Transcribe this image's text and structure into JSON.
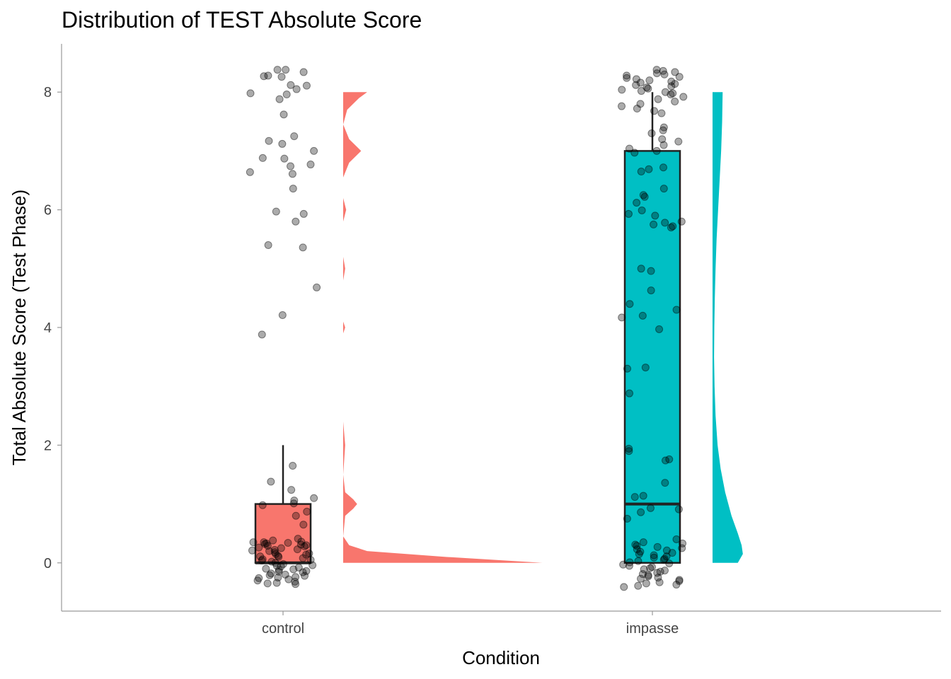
{
  "chart_data": {
    "type": "raincloud",
    "title": "Distribution of TEST Absolute Score",
    "xlabel": "Condition",
    "ylabel": "Total Absolute Score (Test Phase)",
    "categories": [
      "control",
      "impasse"
    ],
    "ylim": [
      -0.82,
      8.82
    ],
    "yticks": [
      0,
      2,
      4,
      6,
      8
    ],
    "grid": false,
    "legend": "none",
    "colors": {
      "control": "#F8766D",
      "impasse": "#00BFC4",
      "points": "#000000",
      "box_line": "#222222",
      "axis": "#999999"
    },
    "series": [
      {
        "category": "control",
        "color": "#F8766D",
        "box": {
          "whisker_low": 0,
          "q1": 0,
          "median": 0,
          "q3": 1,
          "whisker_high": 2
        },
        "outliers": [
          8.28,
          8.38,
          8.27,
          8.34,
          8.26,
          8.38,
          8.11,
          8.12,
          8.05,
          7.98,
          7.96,
          7.88,
          7.62,
          7.25,
          7.17,
          7.12,
          7.0,
          6.88,
          6.87,
          6.77,
          6.74,
          6.64,
          6.61,
          6.36,
          5.97,
          5.93,
          5.8,
          5.4,
          5.36,
          4.68,
          4.21,
          3.88
        ],
        "points": [
          1.65,
          1.38,
          1.24,
          1.1,
          1.06,
          1.01,
          0.98,
          0.87,
          0.8,
          0.65,
          0.41,
          0.38,
          0.36,
          0.35,
          0.34,
          0.33,
          0.32,
          0.31,
          0.3,
          0.28,
          0.26,
          0.25,
          0.23,
          0.22,
          0.2,
          0.18,
          0.16,
          0.14,
          0.12,
          0.1,
          0.08,
          0.06,
          0.04,
          0.02,
          0.0,
          -0.02,
          -0.04,
          -0.06,
          -0.08,
          -0.1,
          -0.12,
          -0.14,
          -0.16,
          -0.18,
          -0.2,
          -0.22,
          -0.24,
          -0.26,
          -0.28,
          -0.3,
          -0.32,
          -0.34,
          -0.36,
          0.29,
          0.15,
          -0.05,
          -0.25,
          0.05,
          -0.15,
          0.35,
          -0.35,
          0.11,
          -0.11,
          0.21,
          -0.21
        ],
        "density": [
          {
            "y": 0,
            "d": 1.0
          },
          {
            "y": 0.1,
            "d": 0.52
          },
          {
            "y": 0.2,
            "d": 0.12
          },
          {
            "y": 0.3,
            "d": 0.03
          },
          {
            "y": 0.45,
            "d": 0.0
          },
          {
            "y": 0.8,
            "d": 0.01
          },
          {
            "y": 0.92,
            "d": 0.05
          },
          {
            "y": 1.0,
            "d": 0.07
          },
          {
            "y": 1.08,
            "d": 0.05
          },
          {
            "y": 1.2,
            "d": 0.01
          },
          {
            "y": 1.5,
            "d": 0.0
          },
          {
            "y": 2.0,
            "d": 0.01
          },
          {
            "y": 2.4,
            "d": 0.0
          },
          {
            "y": 3.9,
            "d": 0.0
          },
          {
            "y": 4.0,
            "d": 0.01
          },
          {
            "y": 4.1,
            "d": 0.0
          },
          {
            "y": 4.8,
            "d": 0.0
          },
          {
            "y": 5.0,
            "d": 0.01
          },
          {
            "y": 5.2,
            "d": 0.0
          },
          {
            "y": 5.8,
            "d": 0.0
          },
          {
            "y": 6.0,
            "d": 0.015
          },
          {
            "y": 6.2,
            "d": 0.0
          },
          {
            "y": 6.55,
            "d": 0.0
          },
          {
            "y": 6.8,
            "d": 0.03
          },
          {
            "y": 7.0,
            "d": 0.09
          },
          {
            "y": 7.2,
            "d": 0.03
          },
          {
            "y": 7.45,
            "d": 0.0
          },
          {
            "y": 7.7,
            "d": 0.02
          },
          {
            "y": 7.9,
            "d": 0.08
          },
          {
            "y": 8.0,
            "d": 0.12
          }
        ]
      },
      {
        "category": "impasse",
        "color": "#00BFC4",
        "box": {
          "whisker_low": 0,
          "q1": 0,
          "median": 1,
          "q3": 7,
          "whisker_high": 8
        },
        "outliers": [],
        "points": [
          8.38,
          8.36,
          8.34,
          8.32,
          8.3,
          8.28,
          8.26,
          8.24,
          8.22,
          8.2,
          8.18,
          8.16,
          8.14,
          8.12,
          8.1,
          8.08,
          8.06,
          8.04,
          8.02,
          8.0,
          7.98,
          7.96,
          7.92,
          7.88,
          7.84,
          7.8,
          7.76,
          7.72,
          7.68,
          7.64,
          7.4,
          7.35,
          7.3,
          7.2,
          7.16,
          7.1,
          7.04,
          7.0,
          6.97,
          6.72,
          6.69,
          6.65,
          6.36,
          6.25,
          6.22,
          6.12,
          5.99,
          5.93,
          5.9,
          5.8,
          5.78,
          5.75,
          5.72,
          5.7,
          5.0,
          4.96,
          4.63,
          4.4,
          4.3,
          4.2,
          4.17,
          3.97,
          3.32,
          3.3,
          2.88,
          1.94,
          1.9,
          1.76,
          1.74,
          1.36,
          1.14,
          1.12,
          0.93,
          0.91,
          0.86,
          0.75,
          0.4,
          0.35,
          0.33,
          0.31,
          0.29,
          0.27,
          0.25,
          0.23,
          0.21,
          0.19,
          0.17,
          0.15,
          0.13,
          0.11,
          0.09,
          0.07,
          0.05,
          0.03,
          0.01,
          -0.01,
          -0.03,
          -0.05,
          -0.07,
          -0.09,
          -0.11,
          -0.13,
          -0.15,
          -0.17,
          -0.19,
          -0.21,
          -0.23,
          -0.25,
          -0.27,
          -0.29,
          -0.31,
          -0.33,
          -0.35,
          -0.37,
          -0.39,
          -0.41
        ],
        "density": [
          {
            "y": 0,
            "d": 0.1
          },
          {
            "y": 0.15,
            "d": 0.12
          },
          {
            "y": 0.3,
            "d": 0.115
          },
          {
            "y": 0.5,
            "d": 0.1
          },
          {
            "y": 0.8,
            "d": 0.075
          },
          {
            "y": 1.2,
            "d": 0.05
          },
          {
            "y": 1.6,
            "d": 0.032
          },
          {
            "y": 2.0,
            "d": 0.02
          },
          {
            "y": 2.5,
            "d": 0.012
          },
          {
            "y": 3.0,
            "d": 0.008
          },
          {
            "y": 3.5,
            "d": 0.006
          },
          {
            "y": 4.0,
            "d": 0.007
          },
          {
            "y": 4.5,
            "d": 0.009
          },
          {
            "y": 5.0,
            "d": 0.012
          },
          {
            "y": 5.5,
            "d": 0.016
          },
          {
            "y": 6.0,
            "d": 0.022
          },
          {
            "y": 6.5,
            "d": 0.028
          },
          {
            "y": 7.0,
            "d": 0.034
          },
          {
            "y": 7.5,
            "d": 0.038
          },
          {
            "y": 8.0,
            "d": 0.04
          }
        ]
      }
    ]
  }
}
